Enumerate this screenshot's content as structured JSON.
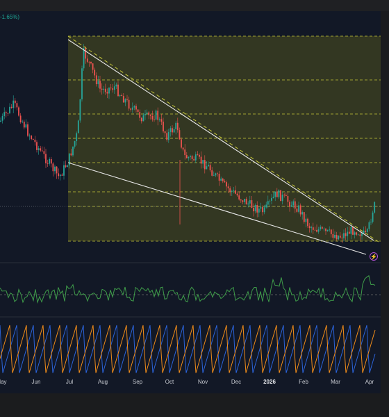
{
  "header": {
    "change_text": "-1.65%)"
  },
  "colors": {
    "up": "#26a69a",
    "down": "#ef5350",
    "trendline": "#e6e6e6",
    "fib": "#c8c83a",
    "zone": "#3a3d22",
    "rsi": "#3f9d4a",
    "stoch_blue": "#2b63d9",
    "stoch_orange": "#f08c1a",
    "event": "#d068f0"
  },
  "icons": {
    "event_marker": "lightning-icon"
  },
  "time_axis": {
    "labels": [
      "May",
      "Jun",
      "Jul",
      "Aug",
      "Sep",
      "Oct",
      "Nov",
      "Dec",
      "2026",
      "Feb",
      "Mar",
      "Apr"
    ],
    "bold_label": "2026"
  }
}
